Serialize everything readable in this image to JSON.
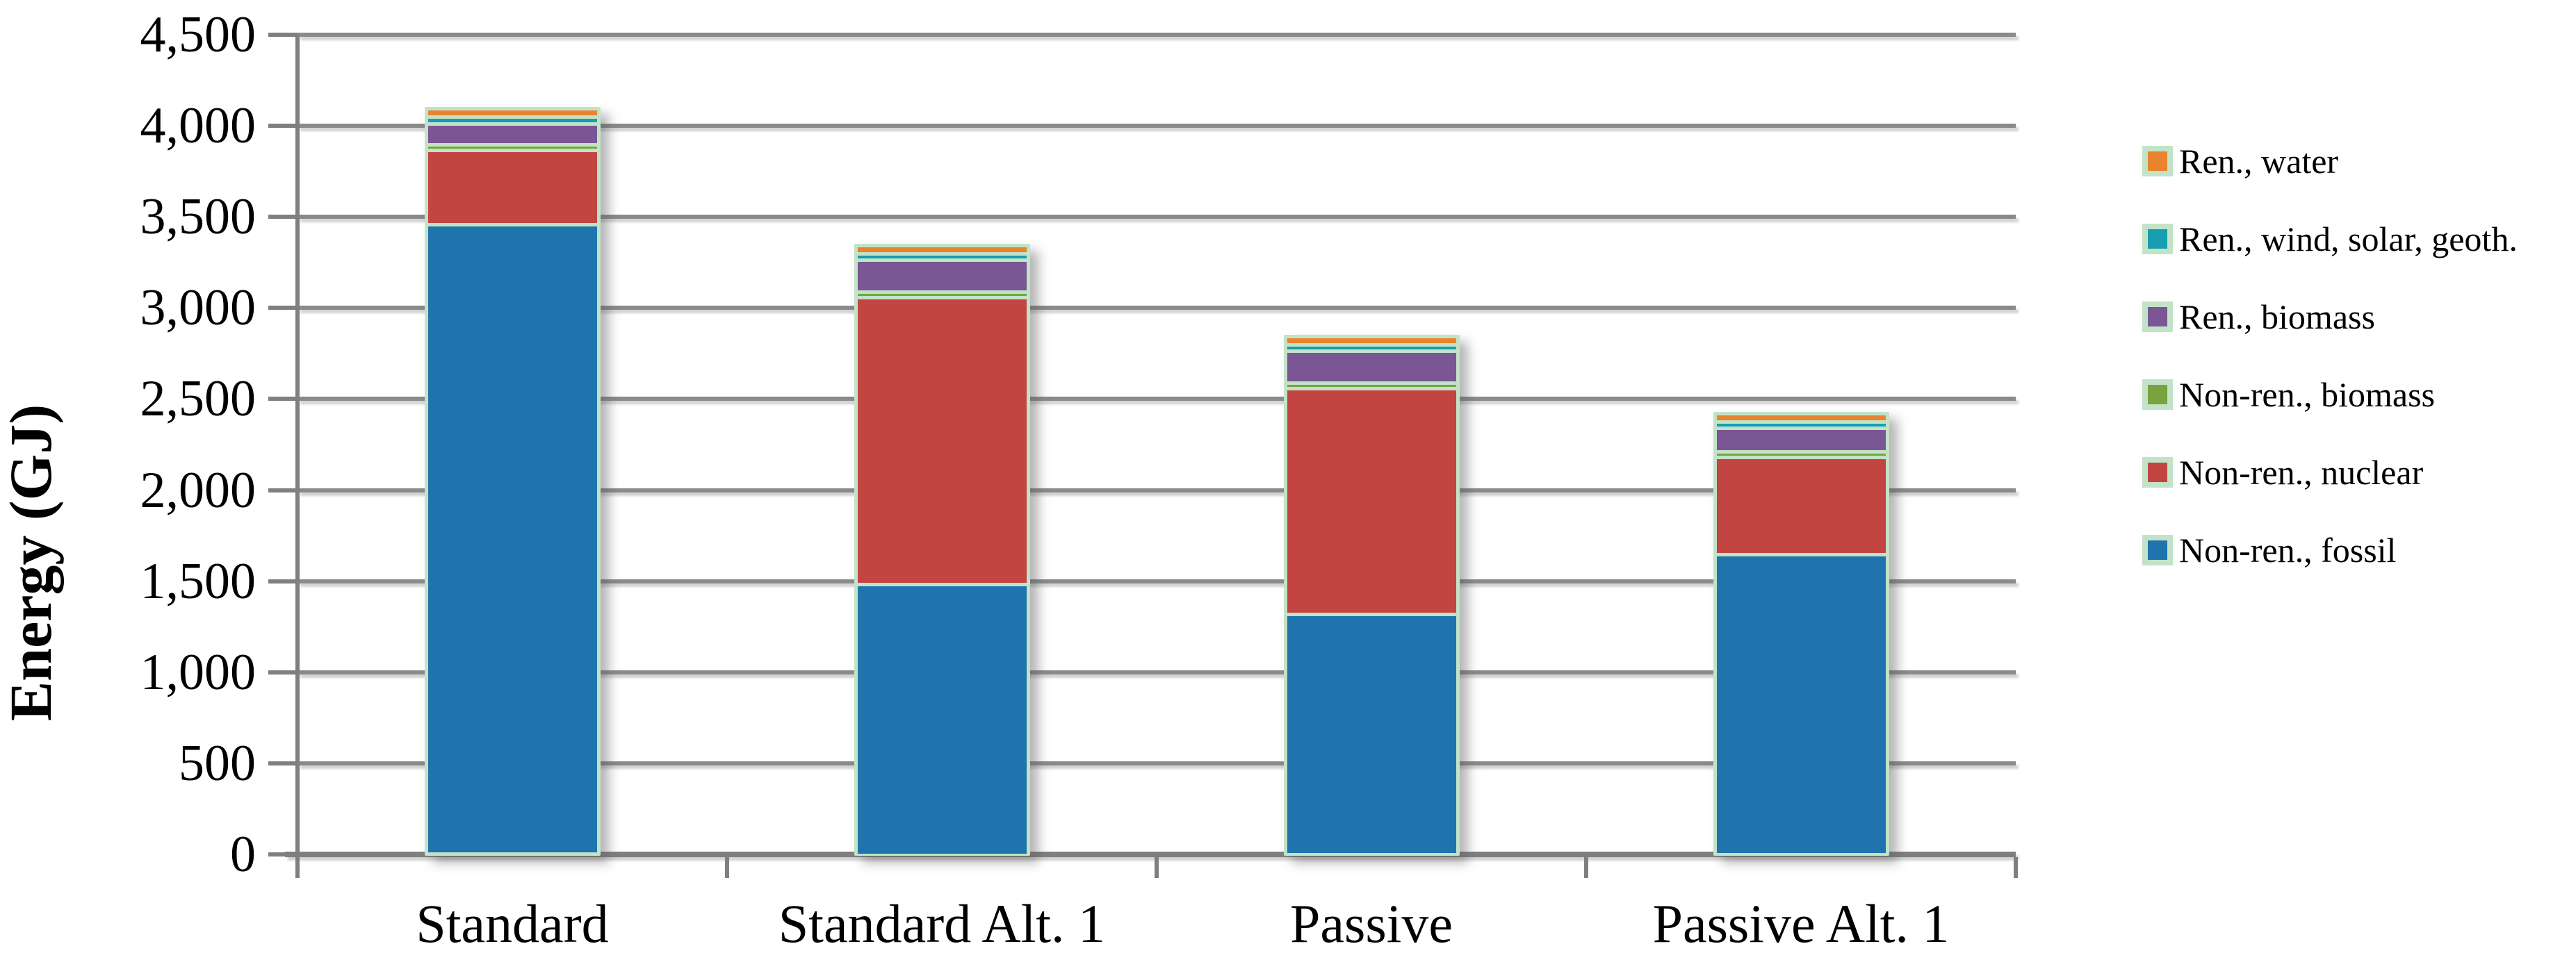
{
  "chart_data": {
    "type": "bar",
    "stacked": true,
    "title": "",
    "xlabel": "",
    "ylabel": "Energy (GJ)",
    "ylim": [
      0,
      4500
    ],
    "ytick_step": 500,
    "ytick_labels": [
      "0",
      "500",
      "1,000",
      "1,500",
      "2,000",
      "2,500",
      "3,000",
      "3,500",
      "4,000",
      "4,500"
    ],
    "grid": true,
    "legend_position": "right",
    "categories": [
      "Standard",
      "Standard Alt. 1",
      "Passive",
      "Passive Alt. 1"
    ],
    "series": [
      {
        "name": "Non-ren., fossil",
        "color": "#1f74ad",
        "values": [
          3570,
          1600,
          1435,
          1760
        ]
      },
      {
        "name": "Non-ren., nuclear",
        "color": "#c24542",
        "values": [
          390,
          1555,
          1220,
          515
        ]
      },
      {
        "name": "Non-ren., biomass",
        "color": "#7aa23e",
        "values": [
          10,
          10,
          10,
          10
        ]
      },
      {
        "name": "Ren., biomass",
        "color": "#7a5694",
        "values": [
          95,
          155,
          155,
          110
        ]
      },
      {
        "name": "Ren., wind, solar, geoth.",
        "color": "#179eb0",
        "values": [
          20,
          15,
          15,
          15
        ]
      },
      {
        "name": "Ren., water",
        "color": "#e8832e",
        "values": [
          25,
          25,
          25,
          25
        ]
      }
    ],
    "legend_order_top_to_bottom": [
      "Ren., water",
      "Ren., wind, solar, geoth.",
      "Ren., biomass",
      "Non-ren., biomass",
      "Non-ren., nuclear",
      "Non-ren., fossil"
    ],
    "bar_outline_color": "#c2e3c7",
    "gridline_color": "#8a8a8a",
    "axis_color": "#7f7f7f"
  }
}
